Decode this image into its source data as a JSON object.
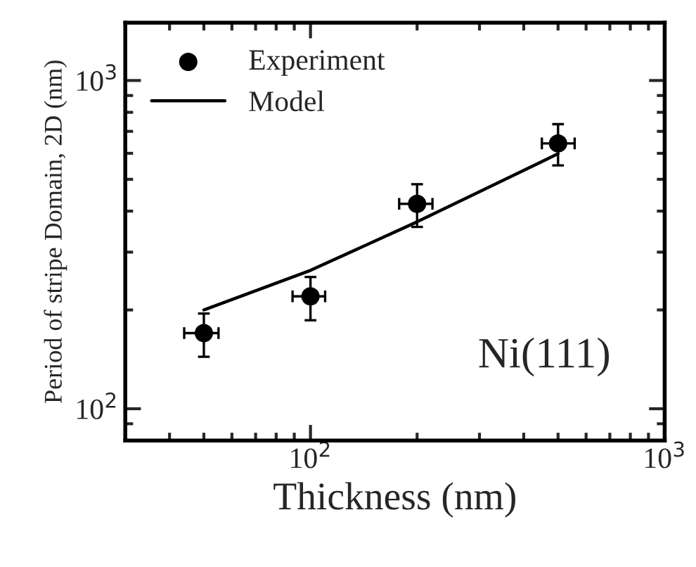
{
  "chart_data": {
    "type": "scatter",
    "xlabel": "Thickness (nm)",
    "ylabel": "Period of stripe Domain, 2D (nm)",
    "log": "xy",
    "xlim": [
      30,
      1000
    ],
    "ylim": [
      80,
      1500
    ],
    "xticks": [
      {
        "value": 100,
        "label": "10$^{2}$"
      },
      {
        "value": 1000,
        "label": "10$^{3}$"
      }
    ],
    "yticks": [
      {
        "value": 100,
        "label": "10$^{2}$"
      },
      {
        "value": 1000,
        "label": "10$^{3}$"
      }
    ],
    "series": [
      {
        "name": "Experiment",
        "color": "#000000",
        "marker": "circle",
        "x": [
          50,
          100,
          200,
          500
        ],
        "values": [
          170,
          220,
          421,
          643
        ],
        "errors": [
          [
            144,
            195
          ],
          [
            186,
            252
          ],
          [
            358,
            483
          ],
          [
            551,
            736
          ]
        ],
        "xerrors": [
          [
            44,
            55
          ],
          [
            89,
            110
          ],
          [
            178,
            221
          ],
          [
            450,
            557
          ]
        ]
      },
      {
        "name": "Model",
        "type": "line",
        "color": "#000000",
        "line_style": "solid",
        "marker": "none",
        "x": [
          50,
          100,
          200,
          500
        ],
        "values": [
          200,
          264,
          371,
          598
        ]
      }
    ],
    "annotations": [
      "Ni(111)"
    ],
    "legend": "top left",
    "grid": false
  }
}
